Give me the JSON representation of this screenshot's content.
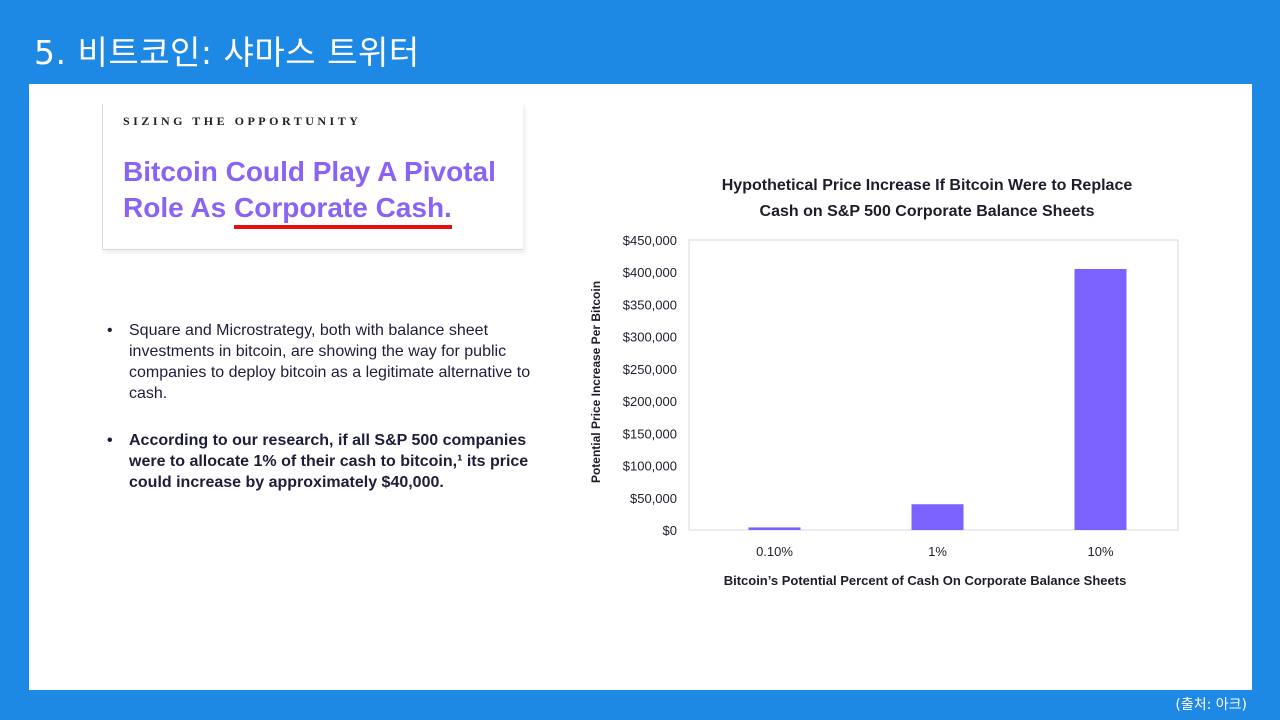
{
  "slide": {
    "title": "5. 비트코인: 샤마스 트위터",
    "source_note": "(출처: 아크)"
  },
  "left": {
    "kicker": "SIZING THE OPPORTUNITY",
    "heading_part1": "Bitcoin Could Play A Pivotal Role As",
    "heading_part2": "Corporate Cash.",
    "bullet_char": "•",
    "bullets": [
      "Square and Microstrategy, both with balance sheet investments in bitcoin, are showing the way for public companies to deploy bitcoin as a legitimate alternative to cash.",
      "According to our research, if all S&P 500 companies were to allocate 1% of their cash to bitcoin,¹ its price could increase by approximately $40,000."
    ]
  },
  "colors": {
    "background": "#1e88e5",
    "heading_purple": "#8a63f5",
    "bar_purple": "#7b61ff",
    "underline_red": "#e31010"
  },
  "chart_data": {
    "type": "bar",
    "title_line1": "Hypothetical Price Increase If Bitcoin Were to Replace",
    "title_line2": "Cash on S&P 500 Corporate Balance Sheets",
    "categories": [
      "0.10%",
      "1%",
      "10%"
    ],
    "values": [
      4000,
      40000,
      405000
    ],
    "xlabel": "Bitcoin’s Potential Percent of Cash On Corporate Balance Sheets",
    "ylabel": "Potential Price Increase Per Bitcoin",
    "ylim": [
      0,
      450000
    ],
    "yticks": [
      "$0",
      "$50,000",
      "$100,000",
      "$150,000",
      "$200,000",
      "$250,000",
      "$300,000",
      "$350,000",
      "$400,000",
      "$450,000"
    ],
    "grid": false
  }
}
